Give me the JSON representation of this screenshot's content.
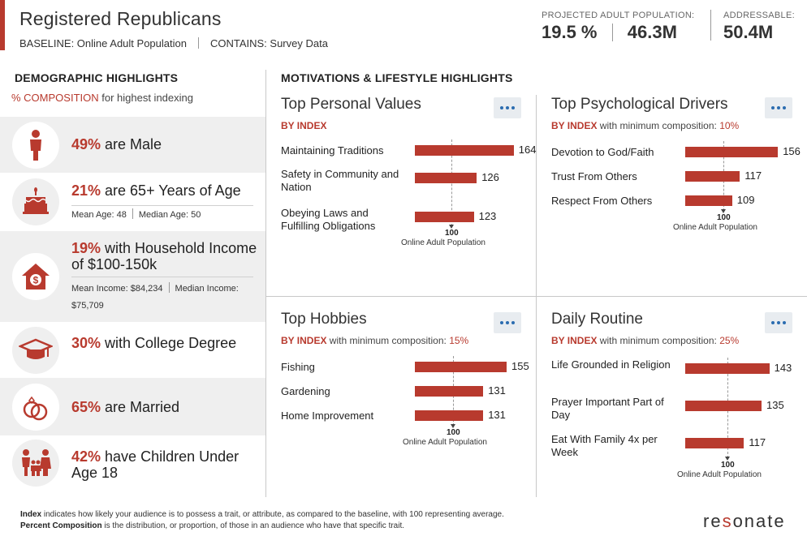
{
  "header": {
    "title": "Registered Republicans",
    "baseline": "BASELINE: Online Adult Population",
    "contains": "CONTAINS: Survey Data",
    "projected_label": "PROJECTED ADULT POPULATION:",
    "projected_pct": "19.5 %",
    "projected_count": "46.3M",
    "addressable_label": "ADDRESSABLE:",
    "addressable_value": "50.4M"
  },
  "demographics": {
    "title": "DEMOGRAPHIC HIGHLIGHTS",
    "subtitle_red": "% COMPOSITION",
    "subtitle_rest": " for highest indexing",
    "items": [
      {
        "icon": "person-icon",
        "pct": "49%",
        "text": " are Male"
      },
      {
        "icon": "cake-icon",
        "pct": "21%",
        "text": " are 65+ Years of Age",
        "meta1": "Mean Age: 48",
        "meta2": "Median Age: 50"
      },
      {
        "icon": "house-dollar-icon",
        "pct": "19%",
        "text": " with Household Income of $100-150k",
        "meta1": "Mean Income: $84,234",
        "meta2": "Median Income: $75,709"
      },
      {
        "icon": "graduation-cap-icon",
        "pct": "30%",
        "text": " with College Degree"
      },
      {
        "icon": "rings-icon",
        "pct": "65%",
        "text": " are Married"
      },
      {
        "icon": "family-icon",
        "pct": "42%",
        "text": " have Children Under Age 18"
      }
    ]
  },
  "motivations": {
    "title": "MOTIVATIONS & LIFESTYLE HIGHLIGHTS",
    "by_index": "BY INDEX",
    "with_min": " with minimum composition: ",
    "ref_100": "100",
    "ref_label": "Online Adult Population",
    "panels": [
      {
        "title": "Top Personal Values",
        "min": "",
        "items": [
          {
            "label": "Maintaining Traditions",
            "value": 164
          },
          {
            "label": "Safety in Community and Nation",
            "value": 126
          },
          {
            "label": "Obeying Laws and Fulfilling Obligations",
            "value": 123
          }
        ]
      },
      {
        "title": "Top Psychological Drivers",
        "min": "10%",
        "items": [
          {
            "label": "Devotion to God/Faith",
            "value": 156
          },
          {
            "label": "Trust From Others",
            "value": 117
          },
          {
            "label": "Respect From Others",
            "value": 109
          }
        ]
      },
      {
        "title": "Top Hobbies",
        "min": "15%",
        "items": [
          {
            "label": "Fishing",
            "value": 155
          },
          {
            "label": "Gardening",
            "value": 131
          },
          {
            "label": "Home Improvement",
            "value": 131
          }
        ]
      },
      {
        "title": "Daily Routine",
        "min": "25%",
        "items": [
          {
            "label": "Life Grounded in Religion",
            "value": 143
          },
          {
            "label": "Prayer Important Part of Day",
            "value": 135
          },
          {
            "label": "Eat With Family 4x per Week",
            "value": 117
          }
        ]
      }
    ]
  },
  "footer": {
    "index_term": "Index",
    "index_text": " indicates how likely your audience is to possess a trait, or attribute, as compared to the baseline, with 100 representing average.",
    "pc_term": "Percent Composition",
    "pc_text": " is the distribution, or proportion, of those in an audience who have that specific trait.",
    "logo": "resonate"
  },
  "colors": {
    "accent": "#b83a2e",
    "link": "#2b6cb0",
    "shade": "#efefef"
  }
}
